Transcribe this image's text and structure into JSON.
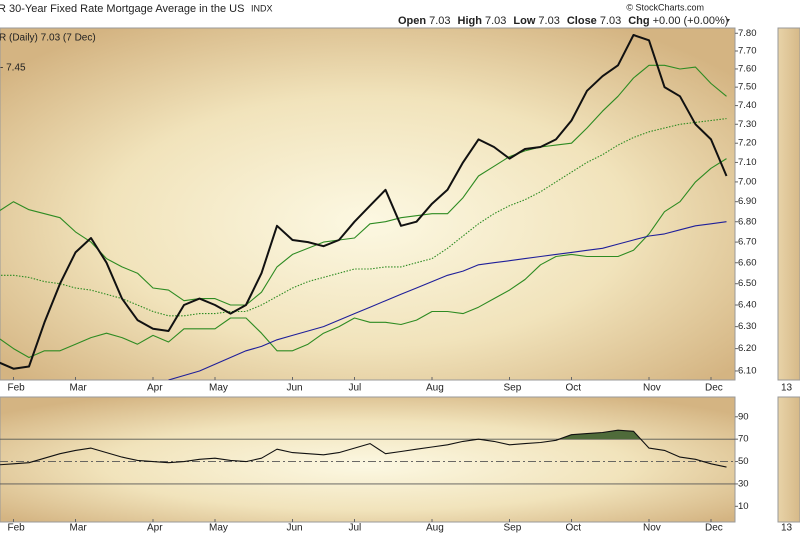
{
  "header": {
    "symbol": "R",
    "title": "30-Year Fixed Rate Mortgage Average in the US",
    "exchange": "INDX",
    "quote": [
      {
        "label": "Open",
        "value": "7.03"
      },
      {
        "label": "High",
        "value": "7.03"
      },
      {
        "label": "Low",
        "value": "7.03"
      },
      {
        "label": "Close",
        "value": "7.03"
      },
      {
        "label": "Chg",
        "value": "+0.00 (+0.00%)"
      }
    ],
    "copyright": "© StockCharts.com",
    "side_label": "13"
  },
  "chart_data": [
    {
      "type": "line",
      "log": true,
      "legend": [
        "R (Daily) 7.03 (7 Dec)",
        "- 7.45"
      ],
      "legend_colors": [
        "#333333",
        "#1e7a1e"
      ],
      "categories": [
        null,
        "Feb",
        null,
        null,
        null,
        "Mar",
        null,
        null,
        null,
        null,
        "Apr",
        null,
        null,
        null,
        "May",
        null,
        null,
        null,
        null,
        "Jun",
        null,
        null,
        null,
        "Jul",
        null,
        null,
        null,
        null,
        "Aug",
        null,
        null,
        null,
        null,
        "Sep",
        null,
        null,
        null,
        "Oct",
        null,
        null,
        null,
        null,
        "Nov",
        null,
        null,
        null,
        "Dec",
        null
      ],
      "ylim": [
        6.06,
        7.83
      ],
      "yticks": [
        {
          "value": 6.1,
          "label": "6.10"
        },
        {
          "value": 6.2,
          "label": "6.20"
        },
        {
          "value": 6.3,
          "label": "6.30"
        },
        {
          "value": 6.4,
          "label": "6.40"
        },
        {
          "value": 6.5,
          "label": "6.50"
        },
        {
          "value": 6.6,
          "label": "6.60"
        },
        {
          "value": 6.7,
          "label": "6.70"
        },
        {
          "value": 6.8,
          "label": "6.80"
        },
        {
          "value": 6.9,
          "label": "6.90"
        },
        {
          "value": 7.0,
          "label": "7.00"
        },
        {
          "value": 7.1,
          "label": "7.10"
        },
        {
          "value": 7.2,
          "label": "7.20"
        },
        {
          "value": 7.3,
          "label": "7.30"
        },
        {
          "value": 7.4,
          "label": "7.40"
        },
        {
          "value": 7.5,
          "label": "7.50"
        },
        {
          "value": 7.6,
          "label": "7.60"
        },
        {
          "value": 7.7,
          "label": "7.70"
        },
        {
          "value": 7.8,
          "label": "7.80"
        }
      ],
      "series": [
        {
          "color": "#2e8b22",
          "values": [
            6.85,
            6.9,
            6.86,
            6.84,
            6.82,
            6.75,
            6.7,
            6.62,
            6.58,
            6.55,
            6.48,
            6.47,
            6.42,
            6.43,
            6.43,
            6.4,
            6.4,
            6.46,
            6.58,
            6.64,
            6.67,
            6.7,
            6.71,
            6.72,
            6.79,
            6.8,
            6.82,
            6.83,
            6.84,
            6.84,
            6.92,
            7.03,
            7.08,
            7.13,
            7.16,
            7.18,
            7.19,
            7.2,
            7.28,
            7.37,
            7.45,
            7.55,
            7.62,
            7.62,
            7.6,
            7.61,
            7.52,
            7.45
          ]
        },
        {
          "color": "#2e8b22",
          "values": [
            6.25,
            6.2,
            6.16,
            6.19,
            6.19,
            6.22,
            6.25,
            6.27,
            6.25,
            6.22,
            6.26,
            6.23,
            6.29,
            6.29,
            6.29,
            6.34,
            6.34,
            6.27,
            6.19,
            6.19,
            6.22,
            6.27,
            6.3,
            6.34,
            6.32,
            6.32,
            6.31,
            6.33,
            6.37,
            6.37,
            6.36,
            6.39,
            6.43,
            6.47,
            6.52,
            6.59,
            6.63,
            6.64,
            6.63,
            6.63,
            6.63,
            6.66,
            6.74,
            6.85,
            6.9,
            7.0,
            7.07,
            7.12
          ]
        },
        {
          "color": "#2e8b22",
          "dashed": true,
          "values": [
            6.54,
            6.54,
            6.53,
            6.51,
            6.5,
            6.48,
            6.47,
            6.45,
            6.43,
            6.4,
            6.37,
            6.35,
            6.35,
            6.36,
            6.36,
            6.37,
            6.37,
            6.4,
            6.44,
            6.48,
            6.51,
            6.53,
            6.55,
            6.57,
            6.57,
            6.58,
            6.58,
            6.6,
            6.62,
            6.67,
            6.73,
            6.79,
            6.84,
            6.88,
            6.91,
            6.95,
            7.0,
            7.05,
            7.1,
            7.14,
            7.19,
            7.23,
            7.26,
            7.28,
            7.3,
            7.31,
            7.32,
            7.33
          ]
        },
        {
          "color": "#1f1f9a",
          "values": [
            null,
            null,
            null,
            null,
            null,
            null,
            null,
            null,
            null,
            null,
            null,
            6.06,
            6.08,
            6.1,
            6.13,
            6.16,
            6.19,
            6.21,
            6.24,
            6.26,
            6.28,
            6.3,
            6.33,
            6.36,
            6.39,
            6.42,
            6.45,
            6.48,
            6.51,
            6.54,
            6.56,
            6.59,
            6.6,
            6.61,
            6.62,
            6.63,
            6.64,
            6.65,
            6.66,
            6.67,
            6.69,
            6.71,
            6.73,
            6.74,
            6.76,
            6.78,
            6.79,
            6.8
          ]
        },
        {
          "color": "#111111",
          "width": 2,
          "values": [
            6.14,
            6.11,
            6.12,
            6.32,
            6.5,
            6.65,
            6.72,
            6.6,
            6.43,
            6.33,
            6.29,
            6.28,
            6.4,
            6.43,
            6.4,
            6.36,
            6.4,
            6.55,
            6.78,
            6.71,
            6.7,
            6.68,
            6.71,
            6.8,
            6.88,
            6.96,
            6.78,
            6.8,
            6.89,
            6.96,
            7.1,
            7.22,
            7.18,
            7.12,
            7.17,
            7.18,
            7.22,
            7.32,
            7.48,
            7.56,
            7.62,
            7.79,
            7.76,
            7.5,
            7.45,
            7.3,
            7.22,
            7.03
          ]
        }
      ]
    },
    {
      "type": "line",
      "categories": [
        null,
        "Feb",
        null,
        null,
        null,
        "Mar",
        null,
        null,
        null,
        null,
        "Apr",
        null,
        null,
        null,
        "May",
        null,
        null,
        null,
        null,
        "Jun",
        null,
        null,
        null,
        "Jul",
        null,
        null,
        null,
        null,
        "Aug",
        null,
        null,
        null,
        null,
        "Sep",
        null,
        null,
        null,
        "Oct",
        null,
        null,
        null,
        null,
        "Nov",
        null,
        null,
        null,
        "Dec",
        null
      ],
      "ylim": [
        0,
        100
      ],
      "yticks": [
        10,
        30,
        50,
        70,
        90
      ],
      "reference_lines": [
        70,
        50,
        30
      ],
      "fill_above": 70,
      "fill_color": "#4f6b3a",
      "series": [
        {
          "color": "#111111",
          "values": [
            47,
            48,
            49,
            53,
            57,
            60,
            62,
            58,
            54,
            51,
            50,
            49,
            50,
            52,
            53,
            51,
            50,
            53,
            61,
            58,
            57,
            56,
            58,
            62,
            66,
            57,
            59,
            61,
            63,
            65,
            68,
            70,
            68,
            65,
            66,
            67,
            69,
            74,
            75,
            76,
            78,
            77,
            62,
            60,
            54,
            52,
            48,
            45
          ]
        }
      ]
    }
  ]
}
